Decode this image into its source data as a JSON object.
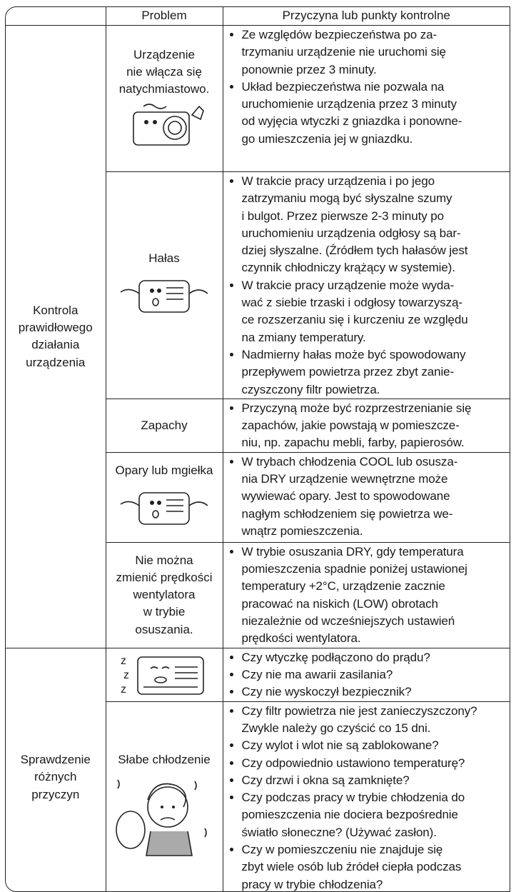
{
  "table": {
    "header": [
      "Problem",
      "Przyczyna lub punkty kontrolne"
    ],
    "groups": [
      {
        "label": [
          "Kontrola",
          "prawidłowego",
          "działania",
          "urządzenia"
        ],
        "rows": [
          {
            "problem": [
              "Urządzenie",
              "nie włącza się",
              "natychmiastowo."
            ],
            "causes": [
              [
                "Ze względów bezpieczeństwa po za-",
                "trzymaniu urządzenie nie uruchomi się",
                "ponownie przez 3 minuty."
              ],
              [
                "Układ bezpieczeństwa nie pozwala na",
                "uruchomienie urządzenia przez 3 minuty",
                "od wyjęcia wtyczki z gniazdka i ponowne-",
                "go umieszczenia jej w gniazdku."
              ]
            ]
          },
          {
            "problem": [
              "Hałas"
            ],
            "causes": [
              [
                "W trakcie pracy urządzenia i po jego",
                "zatrzymaniu mogą być słyszalne szumy",
                "i bulgot. Przez pierwsze 2-3 minuty po",
                "uruchomieniu urządzenia odgłosy są bar-",
                "dziej słyszalne. (Źródłem tych hałasów jest",
                "czynnik chłodniczy krążący w systemie)."
              ],
              [
                "W trakcie pracy urządzenie może wyda-",
                "wać z siebie trzaski i odgłosy towarzyszą-",
                "ce rozszerzaniu się i kurczeniu ze względu",
                "na zmiany temperatury."
              ],
              [
                "Nadmierny hałas może być spowodowany",
                "przepływem powietrza przez zbyt zanie-",
                "czyszczony filtr powietrza."
              ]
            ]
          },
          {
            "problem": [
              "Zapachy"
            ],
            "causes": [
              [
                "Przyczyną może być rozprzestrzenianie się",
                "zapachów, jakie powstają w pomieszcze-",
                "niu, np. zapachu mebli, farby, papierosów."
              ]
            ]
          },
          {
            "problem": [
              "Opary lub mgiełka"
            ],
            "causes": [
              [
                "W trybach chłodzenia COOL lub osusza-",
                "nia DRY urządzenie wewnętrzne może",
                "wywiewać opary. Jest to spowodowane",
                "nagłym schłodzeniem się powietrza we-",
                "wnątrz pomieszczenia."
              ]
            ]
          },
          {
            "problem": [
              "Nie można",
              "zmienić prędkości",
              "wentylatora",
              "w trybie",
              "osuszania."
            ],
            "causes": [
              [
                "W trybie osuszania DRY, gdy temperatura",
                "pomieszczenia spadnie poniżej ustawionej",
                "temperatury +2°C, urządzenie zacznie",
                "pracować na niskich (LOW) obrotach",
                "niezależnie od wcześniejszych ustawień",
                "prędkości wentylatora."
              ]
            ]
          }
        ]
      },
      {
        "label": [
          "Sprawdzenie",
          "różnych",
          "przyczyn"
        ],
        "rows": [
          {
            "causes": [
              [
                "Czy wtyczkę podłączono do prądu?"
              ],
              [
                "Czy nie ma awarii zasilania?"
              ],
              [
                "Czy nie wyskoczył bezpiecznik?"
              ]
            ]
          },
          {
            "problem": [
              "Słabe chłodzenie"
            ],
            "causes": [
              [
                "Czy filtr powietrza nie jest zanieczyszczony?",
                "Zwykle należy go czyścić co 15 dni."
              ],
              [
                "Czy wylot i wlot nie są zablokowane?"
              ],
              [
                "Czy odpowiednio ustawiono temperaturę?"
              ],
              [
                "Czy drzwi i okna są zamknięte?"
              ],
              [
                "Czy podczas pracy w trybie chłodzenia do",
                "pomieszczenia nie dociera bezpośrednie",
                "światło słoneczne? (Używać zasłon)."
              ],
              [
                "Czy w pomieszczeniu nie znajduje się",
                "zbyt wiele osób lub źródeł ciepła podczas",
                "pracy w trybie chłodzenia?"
              ]
            ]
          }
        ]
      }
    ]
  }
}
